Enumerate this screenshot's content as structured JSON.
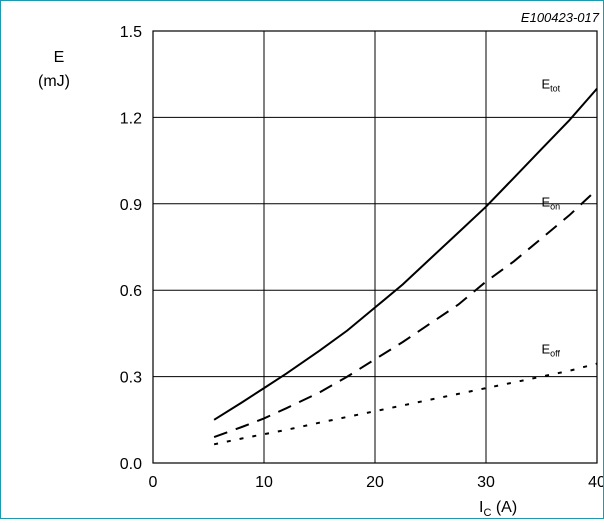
{
  "chart_data": {
    "type": "line",
    "figure_id": "E100423-017",
    "ylabel_symbol": "E",
    "ylabel_unit": "(mJ)",
    "xlabel_main": "I",
    "xlabel_sub": "C",
    "xlabel_unit": " (A)",
    "xlim": [
      0,
      40
    ],
    "ylim": [
      0,
      1.5
    ],
    "xticks": [
      {
        "value": 0,
        "label": "0"
      },
      {
        "value": 10,
        "label": "10"
      },
      {
        "value": 20,
        "label": "20"
      },
      {
        "value": 30,
        "label": "30"
      },
      {
        "value": 40,
        "label": "40"
      }
    ],
    "yticks": [
      {
        "value": 0,
        "label": "0.0"
      },
      {
        "value": 0.3,
        "label": "0.3"
      },
      {
        "value": 0.6,
        "label": "0.6"
      },
      {
        "value": 0.9,
        "label": "0.9"
      },
      {
        "value": 1.2,
        "label": "1.2"
      },
      {
        "value": 1.5,
        "label": "1.5"
      }
    ],
    "grid": true,
    "series": [
      {
        "id": "tot",
        "label_main": "E",
        "label_sub": "tot",
        "style": "solid",
        "label_at": [
          35,
          1.3
        ],
        "x": [
          5.5,
          8,
          10,
          12,
          15,
          17.5,
          20,
          22.5,
          25,
          27.5,
          30,
          32.5,
          35,
          37.5,
          40
        ],
        "y": [
          0.15,
          0.21,
          0.26,
          0.31,
          0.39,
          0.46,
          0.54,
          0.62,
          0.71,
          0.8,
          0.89,
          0.99,
          1.09,
          1.19,
          1.3
        ]
      },
      {
        "id": "on",
        "label_main": "E",
        "label_sub": "on",
        "style": "dashed",
        "label_at": [
          35,
          0.89
        ],
        "x": [
          5.5,
          8,
          10,
          12,
          15,
          17.5,
          20,
          22.5,
          25,
          27.5,
          30,
          32.5,
          35,
          37.5,
          40
        ],
        "y": [
          0.09,
          0.125,
          0.155,
          0.19,
          0.245,
          0.3,
          0.36,
          0.42,
          0.485,
          0.55,
          0.63,
          0.7,
          0.78,
          0.86,
          0.95
        ]
      },
      {
        "id": "off",
        "label_main": "E",
        "label_sub": "off",
        "style": "dotted",
        "label_at": [
          35,
          0.38
        ],
        "x": [
          5.5,
          8,
          10,
          12,
          15,
          17.5,
          20,
          22.5,
          25,
          27.5,
          30,
          32.5,
          35,
          37.5,
          40
        ],
        "y": [
          0.065,
          0.085,
          0.1,
          0.115,
          0.14,
          0.16,
          0.18,
          0.2,
          0.22,
          0.24,
          0.26,
          0.28,
          0.3,
          0.32,
          0.345
        ]
      }
    ]
  }
}
